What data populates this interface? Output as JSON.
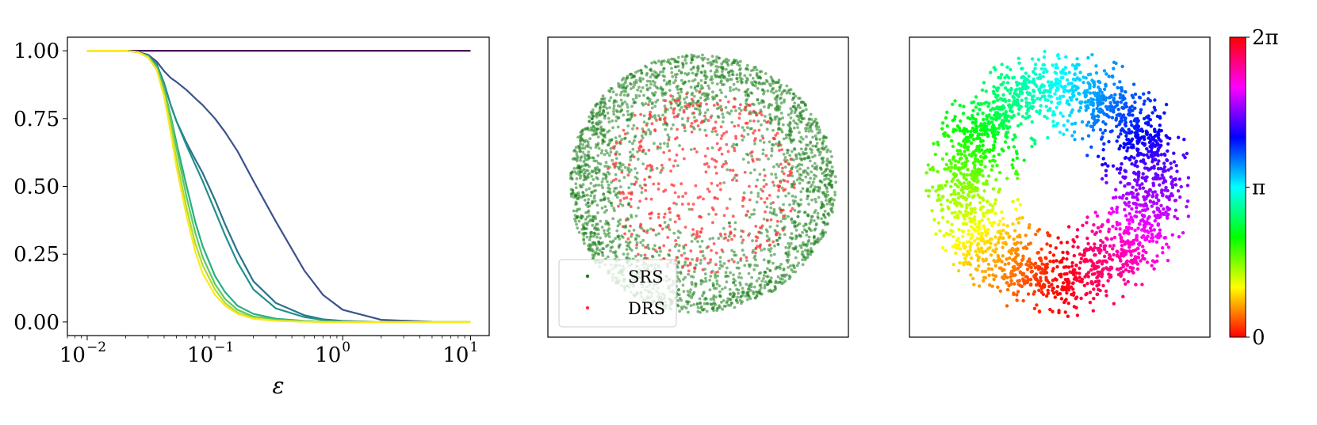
{
  "chart_data": [
    {
      "type": "line",
      "xscale": "log",
      "xlim": [
        0.007,
        14
      ],
      "ylim": [
        -0.05,
        1.05
      ],
      "xlabel": "ε",
      "ylabel": "",
      "title": "",
      "x_ticks": [
        {
          "value": 0.01,
          "base": "10",
          "exp": "−2"
        },
        {
          "value": 0.1,
          "base": "10",
          "exp": "−1"
        },
        {
          "value": 1,
          "base": "10",
          "exp": "0"
        },
        {
          "value": 10,
          "base": "10",
          "exp": "1"
        }
      ],
      "y_ticks": [
        {
          "value": 0.0,
          "label": "0.00"
        },
        {
          "value": 0.25,
          "label": "0.25"
        },
        {
          "value": 0.5,
          "label": "0.50"
        },
        {
          "value": 0.75,
          "label": "0.75"
        },
        {
          "value": 1.0,
          "label": "1.00"
        }
      ],
      "grid": false,
      "x": [
        0.01,
        0.02,
        0.025,
        0.03,
        0.035,
        0.04,
        0.045,
        0.05,
        0.06,
        0.07,
        0.08,
        0.1,
        0.12,
        0.15,
        0.2,
        0.3,
        0.5,
        0.7,
        1.0,
        2.0,
        5.0,
        10.0
      ],
      "series": [
        {
          "color": "#440154",
          "values": [
            1,
            1,
            1,
            1,
            1,
            1,
            1,
            1,
            1,
            1,
            1,
            1,
            1,
            1,
            1,
            1,
            1,
            1,
            1,
            1,
            1,
            1
          ]
        },
        {
          "color": "#3b528b",
          "values": [
            1.0,
            1.0,
            0.995,
            0.985,
            0.96,
            0.925,
            0.9,
            0.885,
            0.855,
            0.825,
            0.8,
            0.75,
            0.7,
            0.63,
            0.52,
            0.37,
            0.19,
            0.1,
            0.045,
            0.008,
            0.001,
            0.0
          ]
        },
        {
          "color": "#2c728e",
          "values": [
            1.0,
            1.0,
            0.995,
            0.98,
            0.95,
            0.88,
            0.8,
            0.74,
            0.66,
            0.6,
            0.55,
            0.45,
            0.36,
            0.26,
            0.15,
            0.07,
            0.025,
            0.01,
            0.004,
            0.0,
            0.0,
            0.0
          ]
        },
        {
          "color": "#21918c",
          "values": [
            1.0,
            1.0,
            0.995,
            0.98,
            0.95,
            0.88,
            0.8,
            0.74,
            0.65,
            0.58,
            0.52,
            0.41,
            0.32,
            0.22,
            0.12,
            0.05,
            0.018,
            0.008,
            0.003,
            0.0,
            0.0,
            0.0
          ]
        },
        {
          "color": "#28ae80",
          "values": [
            1.0,
            1.0,
            0.995,
            0.98,
            0.94,
            0.86,
            0.76,
            0.66,
            0.5,
            0.37,
            0.28,
            0.17,
            0.11,
            0.06,
            0.03,
            0.012,
            0.004,
            0.002,
            0.0,
            0.0,
            0.0,
            0.0
          ]
        },
        {
          "color": "#5ec962",
          "values": [
            1.0,
            1.0,
            0.995,
            0.98,
            0.94,
            0.86,
            0.75,
            0.64,
            0.46,
            0.33,
            0.24,
            0.14,
            0.085,
            0.045,
            0.02,
            0.008,
            0.003,
            0.001,
            0.0,
            0.0,
            0.0,
            0.0
          ]
        },
        {
          "color": "#addc30",
          "values": [
            1.0,
            1.0,
            0.995,
            0.975,
            0.93,
            0.84,
            0.72,
            0.6,
            0.42,
            0.29,
            0.21,
            0.12,
            0.07,
            0.035,
            0.015,
            0.005,
            0.002,
            0.0,
            0.0,
            0.0,
            0.0,
            0.0
          ]
        },
        {
          "color": "#fde725",
          "values": [
            1.0,
            1.0,
            0.995,
            0.975,
            0.93,
            0.83,
            0.7,
            0.57,
            0.39,
            0.26,
            0.18,
            0.1,
            0.06,
            0.03,
            0.012,
            0.004,
            0.001,
            0.0,
            0.0,
            0.0,
            0.0,
            0.0
          ]
        }
      ]
    },
    {
      "type": "scatter",
      "legend_position": "lower left",
      "legend": [
        {
          "label": "SRS",
          "color": "#1a7f1a"
        },
        {
          "label": "DRS",
          "color": "#ff3333"
        }
      ],
      "series": [
        {
          "name": "SRS",
          "color": "#1a7f1a",
          "distribution": "disk_dense_outer",
          "count": 2600
        },
        {
          "name": "DRS",
          "color": "#ff3333",
          "distribution": "disk_inner",
          "count": 420
        }
      ]
    },
    {
      "type": "scatter",
      "distribution": "annulus_colored_by_angle",
      "count": 2400,
      "colorbar": {
        "range": [
          0,
          6.2832
        ],
        "ticks": [
          {
            "value": 0,
            "label": "0"
          },
          {
            "value": 3.1416,
            "label": "π"
          },
          {
            "value": 6.2832,
            "label": "2π"
          }
        ],
        "colormap": "hsv"
      }
    }
  ]
}
